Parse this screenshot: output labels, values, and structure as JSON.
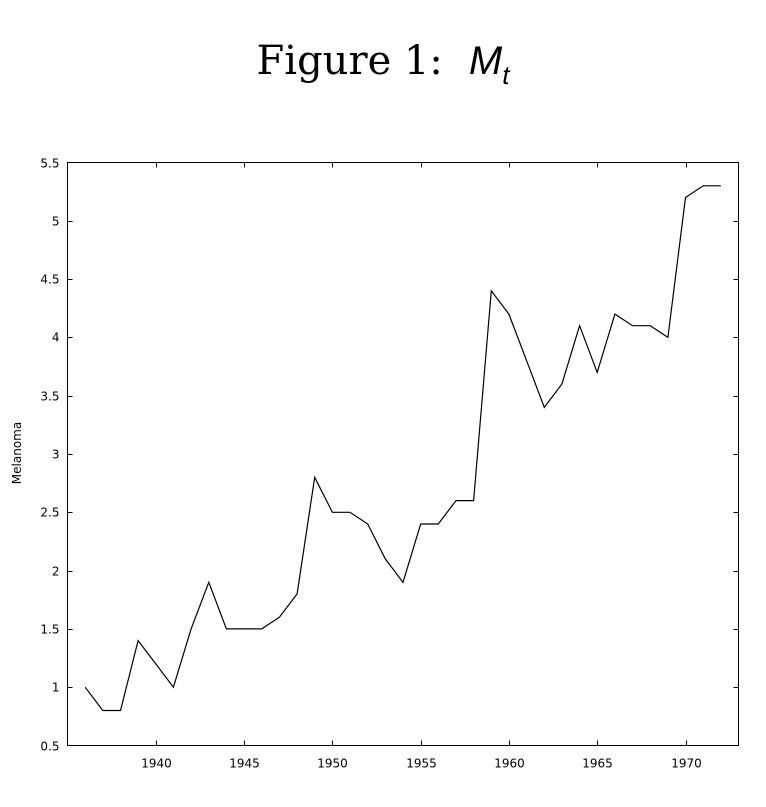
{
  "title": {
    "prefix": "Figure 1:",
    "math_main": "M",
    "math_sub": "t"
  },
  "chart_data": {
    "type": "line",
    "ylabel": "Melanoma",
    "xlim": [
      1935,
      1973
    ],
    "ylim": [
      0.5,
      5.5
    ],
    "xticks": [
      1940,
      1945,
      1950,
      1955,
      1960,
      1965,
      1970
    ],
    "yticks": [
      0.5,
      1,
      1.5,
      2,
      2.5,
      3,
      3.5,
      4,
      4.5,
      5,
      5.5
    ],
    "grid": false,
    "color": "#000000",
    "series": [
      {
        "x": [
          1936,
          1937,
          1938,
          1939,
          1940,
          1941,
          1942,
          1943,
          1944,
          1945,
          1946,
          1947,
          1948,
          1949,
          1950,
          1951,
          1952,
          1953,
          1954,
          1955,
          1956,
          1957,
          1958,
          1959,
          1960,
          1961,
          1962,
          1963,
          1964,
          1965,
          1966,
          1967,
          1968,
          1969,
          1970,
          1971,
          1972
        ],
        "y": [
          1.0,
          0.8,
          0.8,
          1.4,
          1.2,
          1.0,
          1.5,
          1.9,
          1.5,
          1.5,
          1.5,
          1.6,
          1.8,
          2.8,
          2.5,
          2.5,
          2.4,
          2.1,
          1.9,
          2.4,
          2.4,
          2.6,
          2.6,
          4.4,
          4.2,
          3.8,
          3.4,
          3.6,
          4.1,
          3.7,
          4.2,
          4.1,
          4.1,
          4.0,
          5.2,
          5.3,
          5.3
        ]
      }
    ]
  }
}
